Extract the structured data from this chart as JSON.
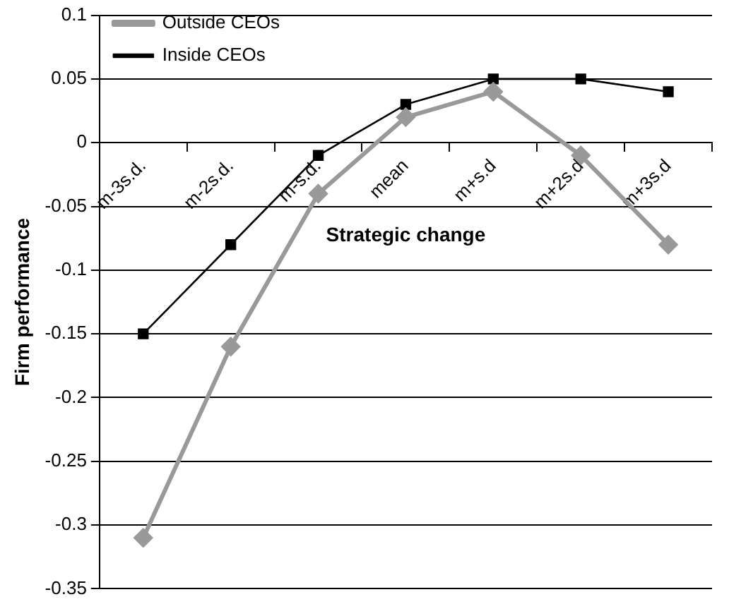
{
  "chart_data": {
    "type": "line",
    "xlabel": "Strategic change",
    "ylabel": "Firm performance",
    "categories": [
      "m-3s.d.",
      "m-2s.d.",
      "m-s.d.",
      "mean",
      "m+s.d",
      "m+2s.d",
      "m+3s.d"
    ],
    "series": [
      {
        "name": "Outside CEOs",
        "color": "#999999",
        "marker": "diamond",
        "values": [
          -0.31,
          -0.16,
          -0.04,
          0.02,
          0.04,
          -0.01,
          -0.08
        ]
      },
      {
        "name": "Inside CEOs",
        "color": "#000000",
        "marker": "square",
        "values": [
          -0.15,
          -0.08,
          -0.01,
          0.03,
          0.05,
          0.05,
          0.04
        ]
      }
    ],
    "ylim": [
      -0.35,
      0.1
    ],
    "yticks": [
      -0.35,
      -0.3,
      -0.25,
      -0.2,
      -0.15,
      -0.1,
      -0.05,
      0,
      0.05,
      0.1
    ],
    "grid": "y",
    "legend": "top left"
  }
}
